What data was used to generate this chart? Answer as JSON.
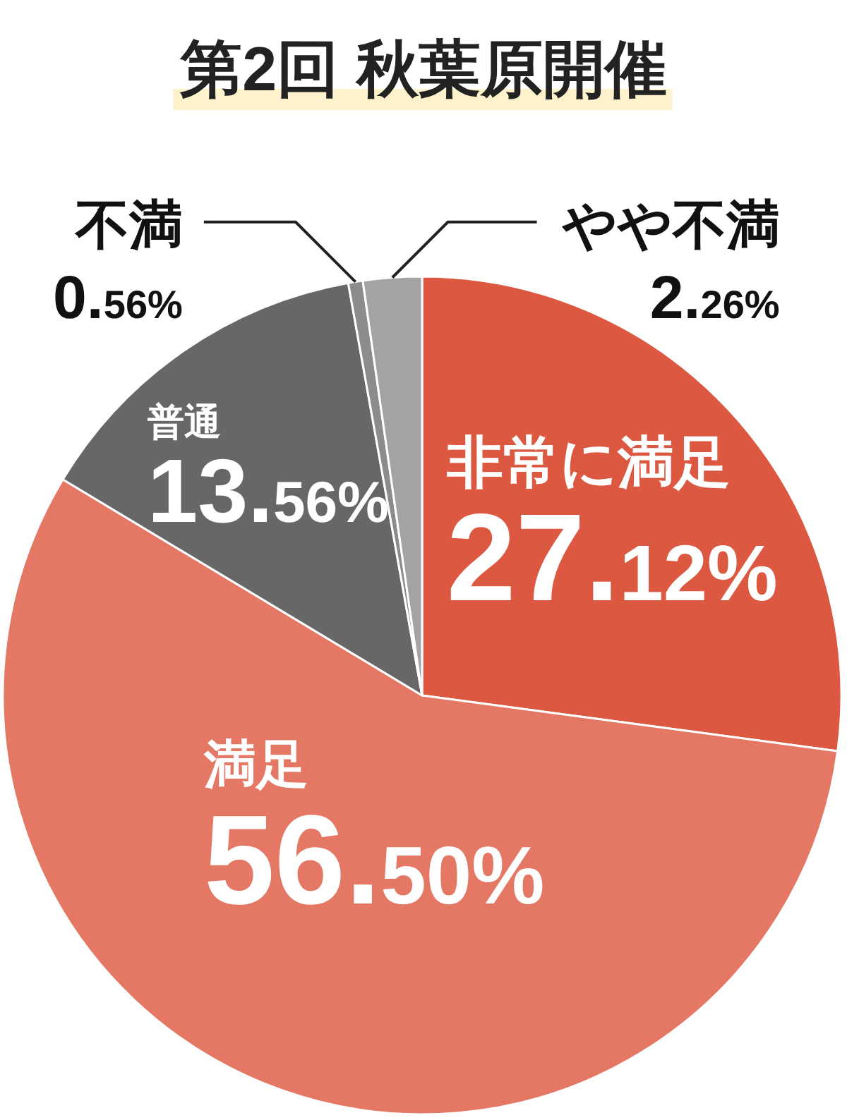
{
  "chart_data": {
    "type": "pie",
    "title": "第2回 秋葉原開催",
    "categories": [
      "非常に満足",
      "満足",
      "普通",
      "不満",
      "やや不満"
    ],
    "values": [
      27.12,
      56.5,
      13.56,
      0.56,
      2.26
    ],
    "colors": [
      "#dd5840",
      "#e47865",
      "#676767",
      "#8c8c8c",
      "#a3a3a3"
    ],
    "value_labels": [
      "27.12%",
      "56.50%",
      "13.56%",
      "0.56%",
      "2.26%"
    ]
  }
}
